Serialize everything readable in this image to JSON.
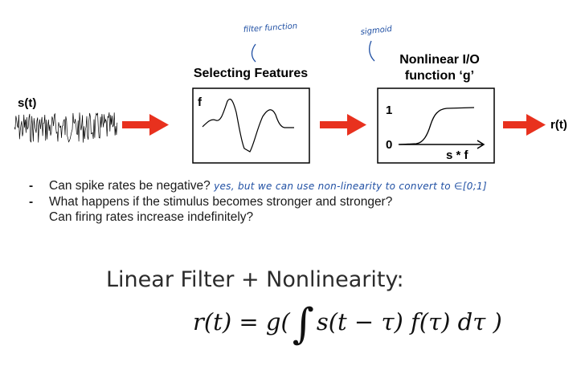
{
  "diagram": {
    "input_label": "s(t)",
    "output_label": "r(t)",
    "filter_box": {
      "title": "Selecting Features",
      "letter": "f",
      "annotation": "filter function"
    },
    "nonlinear_box": {
      "title_line1": "Nonlinear I/O",
      "title_line2": "function ‘g’",
      "y_top": "1",
      "y_bottom": "0",
      "x_label": "s * f",
      "annotation": "sigmoid"
    },
    "colors": {
      "arrow": "#e8311e",
      "annotation": "#1f4fa3"
    }
  },
  "bullets": [
    {
      "lines": [
        "Can spike rates be negative?"
      ],
      "handwritten": "yes, but we can use non-linearity to convert to ∈[0;1]"
    },
    {
      "lines": [
        "What happens if the stimulus becomes stronger and stronger?",
        "Can firing rates increase indefinitely?"
      ]
    }
  ],
  "formula": {
    "title": "Linear Filter + Nonlinearity:",
    "lhs": "r(t) = g(",
    "integral": "∫",
    "rhs": "s(t − τ) f(τ) dτ )"
  }
}
